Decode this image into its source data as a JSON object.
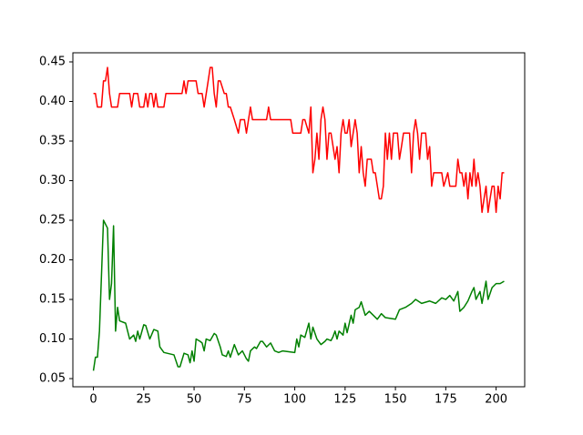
{
  "chart_data": {
    "type": "line",
    "xlim": [
      -10.2,
      214.2
    ],
    "ylim": [
      0.0397,
      0.4615
    ],
    "xticks": [
      0,
      25,
      50,
      75,
      100,
      125,
      150,
      175,
      200
    ],
    "yticks": [
      0.05,
      {
        "value": 0.1,
        "label": "0.10"
      },
      0.15,
      {
        "value": 0.2,
        "label": "0.20"
      },
      0.25,
      {
        "value": 0.3,
        "label": "0.30"
      },
      0.35,
      {
        "value": 0.4,
        "label": "0.40"
      },
      0.45
    ],
    "grid": false,
    "series": [
      {
        "color": "#ff0000",
        "x": [
          0,
          1,
          2,
          4,
          5,
          6,
          7,
          8,
          9,
          12,
          13,
          18,
          19,
          20,
          22,
          23,
          25,
          26,
          27,
          28,
          29,
          30,
          31,
          32,
          35,
          36,
          44,
          45,
          46,
          47,
          51,
          52,
          54,
          55,
          57,
          58,
          59,
          60,
          61,
          62,
          63,
          65,
          66,
          67,
          68,
          70,
          72,
          73,
          75,
          76,
          78,
          79,
          86,
          87,
          88,
          98,
          99,
          103,
          104,
          105,
          107,
          108,
          109,
          110,
          111,
          112,
          113,
          114,
          115,
          116,
          117,
          118,
          120,
          121,
          122,
          123,
          124,
          125,
          126,
          127,
          128,
          129,
          130,
          131,
          132,
          133,
          134,
          135,
          136,
          138,
          139,
          140,
          142,
          143,
          144,
          145,
          146,
          147,
          148,
          149,
          151,
          152,
          153,
          154,
          157,
          158,
          159,
          160,
          161,
          162,
          163,
          165,
          166,
          167,
          168,
          169,
          173,
          174,
          176,
          177,
          180,
          181,
          182,
          183,
          184,
          185,
          186,
          187,
          188,
          189,
          190,
          191,
          192,
          193,
          194,
          195,
          196,
          197,
          198,
          199,
          200,
          201,
          202,
          203,
          204
        ],
        "values": [
          0.41,
          0.41,
          0.393,
          0.393,
          0.426,
          0.426,
          0.443,
          0.41,
          0.393,
          0.393,
          0.41,
          0.41,
          0.393,
          0.41,
          0.41,
          0.393,
          0.393,
          0.41,
          0.393,
          0.41,
          0.41,
          0.393,
          0.41,
          0.393,
          0.393,
          0.41,
          0.41,
          0.426,
          0.41,
          0.426,
          0.426,
          0.41,
          0.41,
          0.393,
          0.426,
          0.443,
          0.443,
          0.41,
          0.393,
          0.426,
          0.426,
          0.41,
          0.41,
          0.393,
          0.393,
          0.377,
          0.36,
          0.377,
          0.377,
          0.36,
          0.393,
          0.377,
          0.377,
          0.393,
          0.377,
          0.377,
          0.36,
          0.36,
          0.377,
          0.377,
          0.36,
          0.393,
          0.31,
          0.327,
          0.36,
          0.327,
          0.377,
          0.393,
          0.377,
          0.327,
          0.36,
          0.36,
          0.327,
          0.343,
          0.31,
          0.36,
          0.377,
          0.36,
          0.36,
          0.377,
          0.343,
          0.36,
          0.377,
          0.36,
          0.31,
          0.343,
          0.31,
          0.293,
          0.327,
          0.327,
          0.31,
          0.31,
          0.277,
          0.277,
          0.293,
          0.36,
          0.327,
          0.36,
          0.327,
          0.36,
          0.36,
          0.327,
          0.343,
          0.36,
          0.36,
          0.31,
          0.36,
          0.377,
          0.36,
          0.327,
          0.36,
          0.36,
          0.327,
          0.343,
          0.293,
          0.31,
          0.31,
          0.293,
          0.31,
          0.293,
          0.293,
          0.327,
          0.31,
          0.31,
          0.293,
          0.31,
          0.277,
          0.31,
          0.293,
          0.327,
          0.293,
          0.31,
          0.293,
          0.26,
          0.277,
          0.293,
          0.26,
          0.277,
          0.293,
          0.293,
          0.26,
          0.293,
          0.277,
          0.31,
          0.31
        ]
      },
      {
        "color": "#008000",
        "x": [
          0,
          1,
          2,
          3,
          5,
          7,
          8,
          9,
          10,
          11,
          12,
          13,
          16,
          18,
          20,
          21,
          22,
          23,
          25,
          26,
          28,
          30,
          32,
          33,
          35,
          40,
          42,
          43,
          45,
          47,
          48,
          49,
          50,
          51,
          53,
          54,
          55,
          56,
          58,
          60,
          61,
          63,
          64,
          66,
          67,
          68,
          70,
          72,
          74,
          76,
          77,
          78,
          80,
          81,
          83,
          84,
          86,
          88,
          90,
          92,
          94,
          100,
          101,
          102,
          103,
          105,
          107,
          108,
          109,
          111,
          113,
          115,
          116,
          118,
          119,
          120,
          121,
          122,
          124,
          125,
          126,
          128,
          129,
          130,
          132,
          133,
          135,
          137,
          139,
          141,
          143,
          145,
          150,
          152,
          155,
          158,
          160,
          163,
          167,
          170,
          173,
          175,
          177,
          179,
          181,
          182,
          184,
          186,
          188,
          189,
          190,
          192,
          193,
          195,
          196,
          198,
          200,
          202,
          204
        ],
        "values": [
          0.06,
          0.077,
          0.077,
          0.11,
          0.25,
          0.24,
          0.15,
          0.17,
          0.243,
          0.11,
          0.14,
          0.123,
          0.12,
          0.1,
          0.105,
          0.097,
          0.11,
          0.1,
          0.118,
          0.117,
          0.1,
          0.112,
          0.11,
          0.09,
          0.083,
          0.08,
          0.065,
          0.065,
          0.082,
          0.08,
          0.07,
          0.085,
          0.072,
          0.1,
          0.097,
          0.095,
          0.085,
          0.1,
          0.098,
          0.107,
          0.105,
          0.09,
          0.08,
          0.078,
          0.085,
          0.077,
          0.093,
          0.08,
          0.085,
          0.075,
          0.072,
          0.085,
          0.09,
          0.088,
          0.097,
          0.097,
          0.09,
          0.095,
          0.085,
          0.083,
          0.085,
          0.083,
          0.1,
          0.09,
          0.105,
          0.102,
          0.12,
          0.1,
          0.115,
          0.1,
          0.093,
          0.097,
          0.1,
          0.098,
          0.103,
          0.11,
          0.1,
          0.11,
          0.105,
          0.12,
          0.108,
          0.13,
          0.12,
          0.137,
          0.14,
          0.147,
          0.13,
          0.135,
          0.13,
          0.125,
          0.132,
          0.127,
          0.125,
          0.137,
          0.14,
          0.145,
          0.15,
          0.145,
          0.148,
          0.145,
          0.152,
          0.15,
          0.155,
          0.148,
          0.16,
          0.135,
          0.14,
          0.148,
          0.16,
          0.165,
          0.15,
          0.16,
          0.145,
          0.173,
          0.15,
          0.165,
          0.17,
          0.17,
          0.173
        ]
      }
    ]
  }
}
